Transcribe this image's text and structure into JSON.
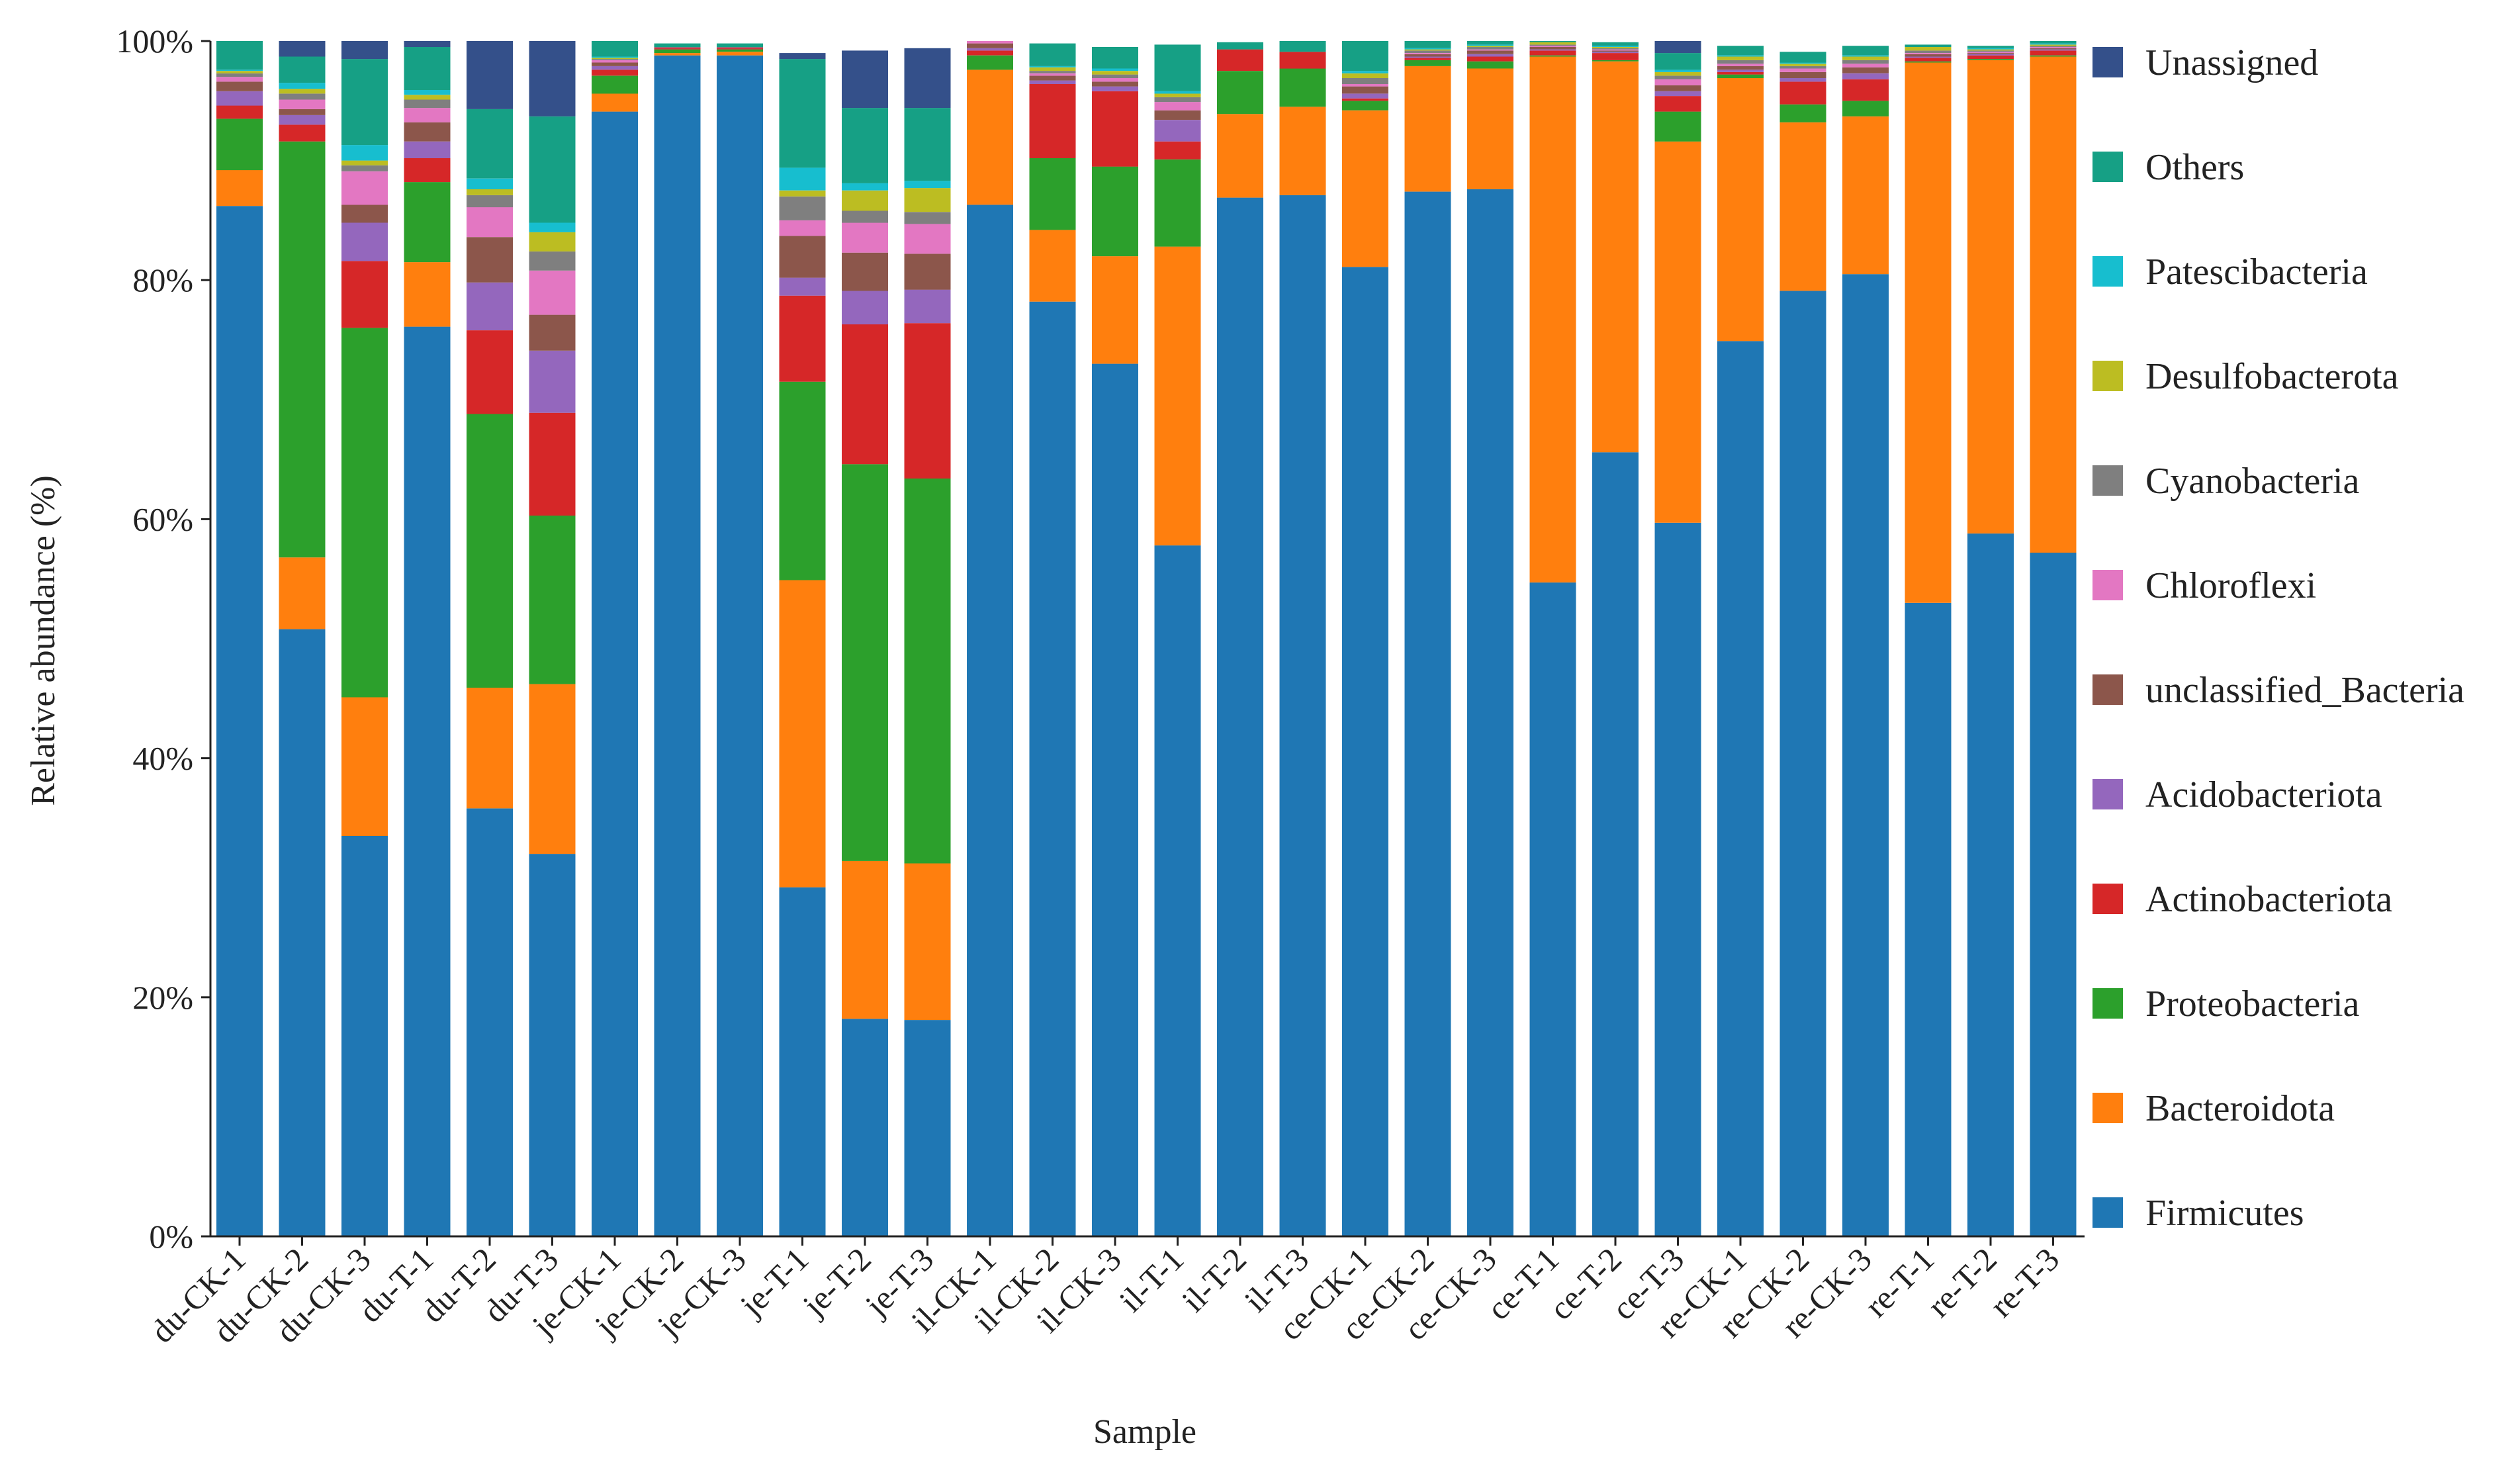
{
  "chart_data": {
    "type": "bar",
    "stacked": true,
    "xlabel": "Sample",
    "ylabel": "Relative abundance (%)",
    "ylim": [
      0,
      100
    ],
    "yticks": [
      "0%",
      "20%",
      "40%",
      "60%",
      "80%",
      "100%"
    ],
    "grid": false,
    "legend_position": "right",
    "categories": [
      "du-CK-1",
      "du-CK-2",
      "du-CK-3",
      "du-T-1",
      "du-T-2",
      "du-T-3",
      "je-CK-1",
      "je-CK-2",
      "je-CK-3",
      "je-T-1",
      "je-T-2",
      "je-T-3",
      "il-CK-1",
      "il-CK-2",
      "il-CK-3",
      "il-T-1",
      "il-T-2",
      "il-T-3",
      "ce-CK-1",
      "ce-CK-2",
      "ce-CK-3",
      "ce-T-1",
      "ce-T-2",
      "ce-T-3",
      "re-CK-1",
      "re-CK-2",
      "re-CK-3",
      "re-T-1",
      "re-T-2",
      "re-T-3"
    ],
    "series": [
      {
        "name": "Firmicutes",
        "color": "#1f77b4",
        "values": [
          86.2,
          50.8,
          33.5,
          76.1,
          35.8,
          32.0,
          94.1,
          98.8,
          98.8,
          29.2,
          18.2,
          18.1,
          86.3,
          78.2,
          73.0,
          57.8,
          86.9,
          87.1,
          81.1,
          87.4,
          87.6,
          54.7,
          65.6,
          59.7,
          74.9,
          79.1,
          80.5,
          53.0,
          58.8,
          57.2
        ]
      },
      {
        "name": "Bacteroidota",
        "color": "#ff7f0e",
        "values": [
          3.0,
          6.0,
          11.6,
          5.4,
          10.1,
          14.2,
          1.5,
          0.2,
          0.3,
          25.7,
          13.2,
          13.1,
          11.3,
          6.0,
          9.0,
          25.0,
          7.0,
          7.4,
          13.1,
          10.5,
          10.1,
          44.0,
          32.7,
          31.9,
          22.0,
          14.1,
          13.2,
          45.2,
          39.6,
          41.5
        ]
      },
      {
        "name": "Proteobacteria",
        "color": "#2ca02c",
        "values": [
          4.3,
          34.8,
          30.9,
          6.7,
          22.9,
          14.1,
          1.5,
          0.3,
          0.2,
          16.6,
          33.2,
          32.2,
          1.2,
          6.0,
          7.5,
          7.3,
          3.6,
          3.2,
          0.8,
          0.5,
          0.6,
          0.1,
          0.1,
          2.5,
          0.3,
          1.5,
          1.3,
          0.1,
          0.1,
          0.1
        ]
      },
      {
        "name": "Actinobacteriota",
        "color": "#d62728",
        "values": [
          1.1,
          1.4,
          5.6,
          2.0,
          7.0,
          8.6,
          0.5,
          0.1,
          0.1,
          7.2,
          11.7,
          13.0,
          0.4,
          6.2,
          6.3,
          1.5,
          1.8,
          1.4,
          0.2,
          0.2,
          0.4,
          0.4,
          0.6,
          1.3,
          0.2,
          1.9,
          1.8,
          0.3,
          0.3,
          0.4
        ]
      },
      {
        "name": "Acidobacteriota",
        "color": "#9467bd",
        "values": [
          1.2,
          0.8,
          3.2,
          1.4,
          4.0,
          5.2,
          0.3,
          0.05,
          0.05,
          1.5,
          2.8,
          2.8,
          0.2,
          0.3,
          0.4,
          1.8,
          0.0,
          0.0,
          0.4,
          0.1,
          0.2,
          0.1,
          0.1,
          0.4,
          0.2,
          0.3,
          0.5,
          0.1,
          0.1,
          0.1
        ]
      },
      {
        "name": "unclassified_Bacteria",
        "color": "#8c564b",
        "values": [
          0.8,
          0.5,
          1.5,
          1.6,
          3.8,
          3.0,
          0.3,
          0.05,
          0.05,
          3.5,
          3.2,
          3.0,
          0.4,
          0.4,
          0.4,
          0.8,
          0.0,
          0.0,
          0.6,
          0.2,
          0.3,
          0.2,
          0.1,
          0.5,
          0.3,
          0.5,
          0.5,
          0.2,
          0.1,
          0.1
        ]
      },
      {
        "name": "Chloroflexi",
        "color": "#e377c2",
        "values": [
          0.4,
          0.8,
          2.8,
          1.2,
          2.5,
          3.7,
          0.2,
          0.0,
          0.0,
          1.3,
          2.5,
          2.5,
          0.2,
          0.2,
          0.3,
          0.7,
          0.0,
          0.0,
          0.2,
          0.1,
          0.1,
          0.1,
          0.1,
          0.5,
          0.2,
          0.3,
          0.3,
          0.1,
          0.1,
          0.1
        ]
      },
      {
        "name": "Cyanobacteria",
        "color": "#7f7f7f",
        "values": [
          0.3,
          0.5,
          0.5,
          0.7,
          1.0,
          1.6,
          0.1,
          0.0,
          0.0,
          2.0,
          1.0,
          1.0,
          0.2,
          0.2,
          0.3,
          0.4,
          0.0,
          0.0,
          0.5,
          0.2,
          0.2,
          0.1,
          0.1,
          0.3,
          0.3,
          0.2,
          0.3,
          0.2,
          0.1,
          0.1
        ]
      },
      {
        "name": "Desulfobacterota",
        "color": "#bcbd22",
        "values": [
          0.2,
          0.4,
          0.4,
          0.4,
          0.5,
          1.6,
          0.1,
          0.0,
          0.0,
          0.5,
          1.7,
          2.0,
          0.2,
          0.3,
          0.3,
          0.3,
          0.0,
          0.0,
          0.4,
          0.1,
          0.1,
          0.2,
          0.1,
          0.3,
          0.3,
          0.2,
          0.3,
          0.3,
          0.1,
          0.1
        ]
      },
      {
        "name": "Patescibacteria",
        "color": "#17becf",
        "values": [
          0.1,
          0.5,
          1.3,
          0.4,
          0.9,
          0.8,
          0.1,
          0.0,
          0.0,
          1.9,
          0.6,
          0.6,
          0.1,
          0.1,
          0.2,
          0.2,
          0.0,
          0.0,
          0.2,
          0.1,
          0.1,
          0.0,
          0.1,
          0.2,
          0.1,
          0.1,
          0.1,
          0.0,
          0.1,
          0.1
        ]
      },
      {
        "name": "Others",
        "color": "#16a085",
        "values": [
          2.4,
          2.2,
          7.2,
          3.6,
          5.8,
          8.9,
          1.3,
          0.3,
          0.3,
          9.1,
          6.3,
          6.1,
          0.7,
          1.9,
          1.8,
          3.9,
          0.6,
          2.2,
          2.8,
          0.6,
          0.5,
          0.1,
          0.3,
          1.4,
          0.8,
          0.9,
          0.8,
          0.2,
          0.2,
          0.2
        ]
      },
      {
        "name": "Unassigned",
        "color": "#34508a",
        "values": [
          0.0,
          1.3,
          1.5,
          0.5,
          5.7,
          6.3,
          0.0,
          0.0,
          0.0,
          0.5,
          4.8,
          5.0,
          0.0,
          0.0,
          0.0,
          0.0,
          0.0,
          0.5,
          0.0,
          0.0,
          0.0,
          0.0,
          0.0,
          1.0,
          0.0,
          0.0,
          0.0,
          0.0,
          0.0,
          0.0
        ]
      }
    ]
  }
}
